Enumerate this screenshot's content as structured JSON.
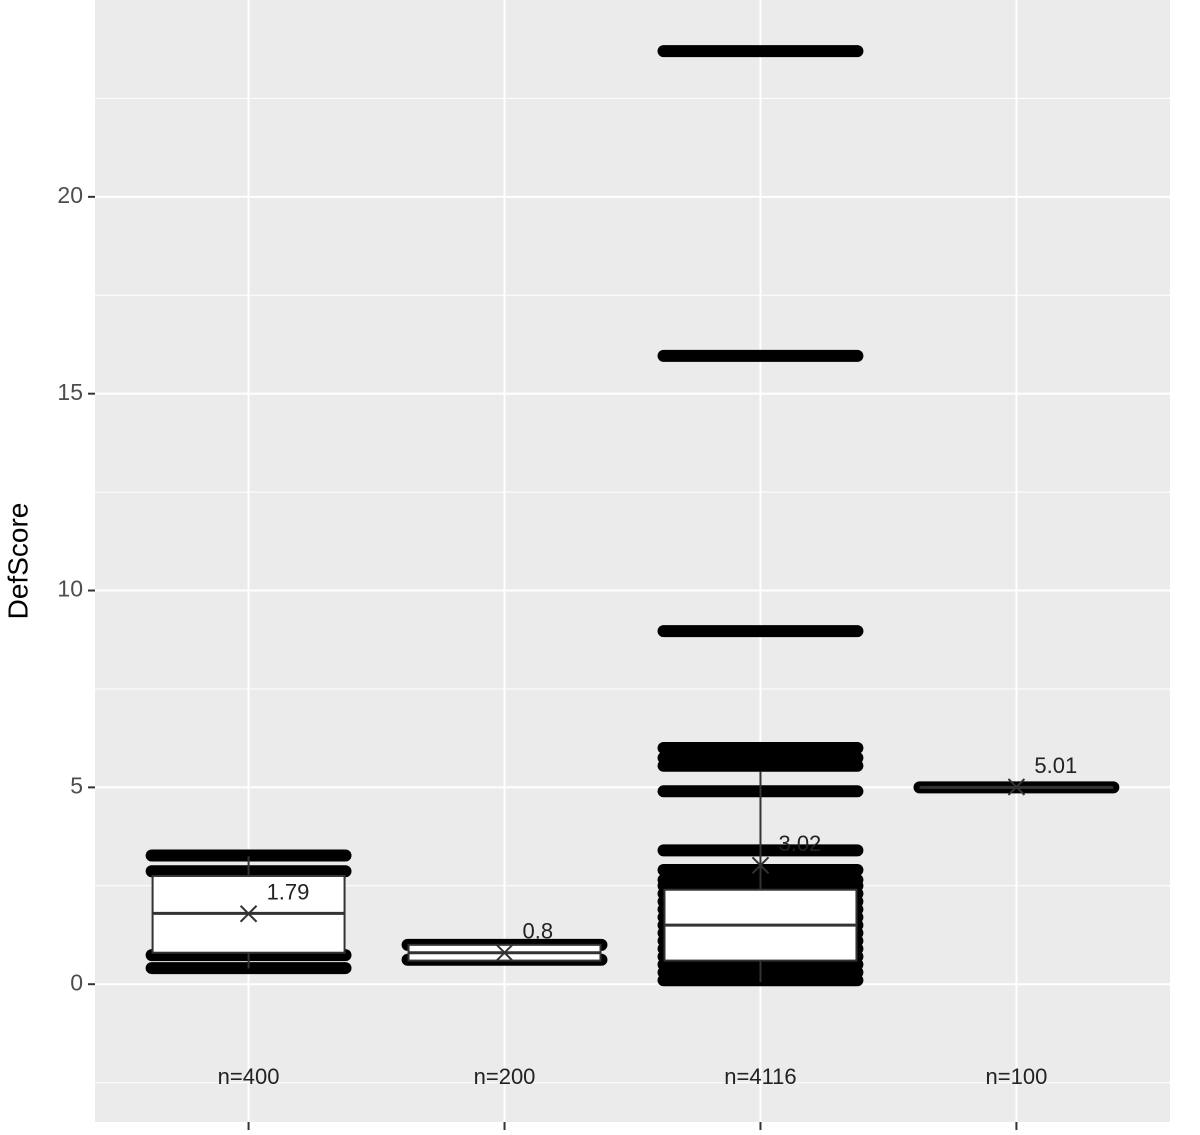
{
  "chart_data": {
    "type": "box",
    "y_label": "DefScore",
    "categories": [
      null,
      null,
      null,
      null
    ],
    "ylim": [
      -3.5,
      25
    ],
    "yticks": [
      0,
      5,
      10,
      15,
      20
    ],
    "minor_yticks": [
      -2.5,
      2.5,
      7.5,
      12.5,
      17.5,
      22.5
    ],
    "grid": true,
    "point_color": "#000000",
    "panel_color": "#ebebeb",
    "groups": [
      {
        "n_label": "n=400",
        "whisker_low": 0.4,
        "q1": 0.8,
        "median": 1.8,
        "q3": 2.75,
        "whisker_high": 3.25,
        "mean": 1.79,
        "points": [
          3.27,
          2.87,
          0.74,
          0.41
        ]
      },
      {
        "n_label": "n=200",
        "whisker_low": 0.6,
        "q1": 0.6,
        "median": 0.8,
        "q3": 1.0,
        "whisker_high": 1.0,
        "mean": 0.8,
        "points": [
          1.0,
          0.62
        ]
      },
      {
        "n_label": "n=4116",
        "whisker_low": 0.05,
        "q1": 0.6,
        "median": 1.5,
        "q3": 2.4,
        "whisker_high": 5.4,
        "mean": 3.02,
        "points": [
          23.7,
          15.96,
          8.97,
          6.0,
          5.75,
          5.55,
          4.9,
          3.4,
          2.9,
          2.65,
          2.5,
          2.3,
          2.1,
          1.9,
          1.7,
          1.5,
          1.3,
          1.1,
          0.9,
          0.7,
          0.5,
          0.3,
          0.1
        ]
      },
      {
        "n_label": "n=100",
        "whisker_low": 5.0,
        "q1": 5.0,
        "median": 5.0,
        "q3": 5.0,
        "whisker_high": 5.0,
        "mean": 5.01,
        "points": [
          5.0
        ]
      }
    ]
  }
}
